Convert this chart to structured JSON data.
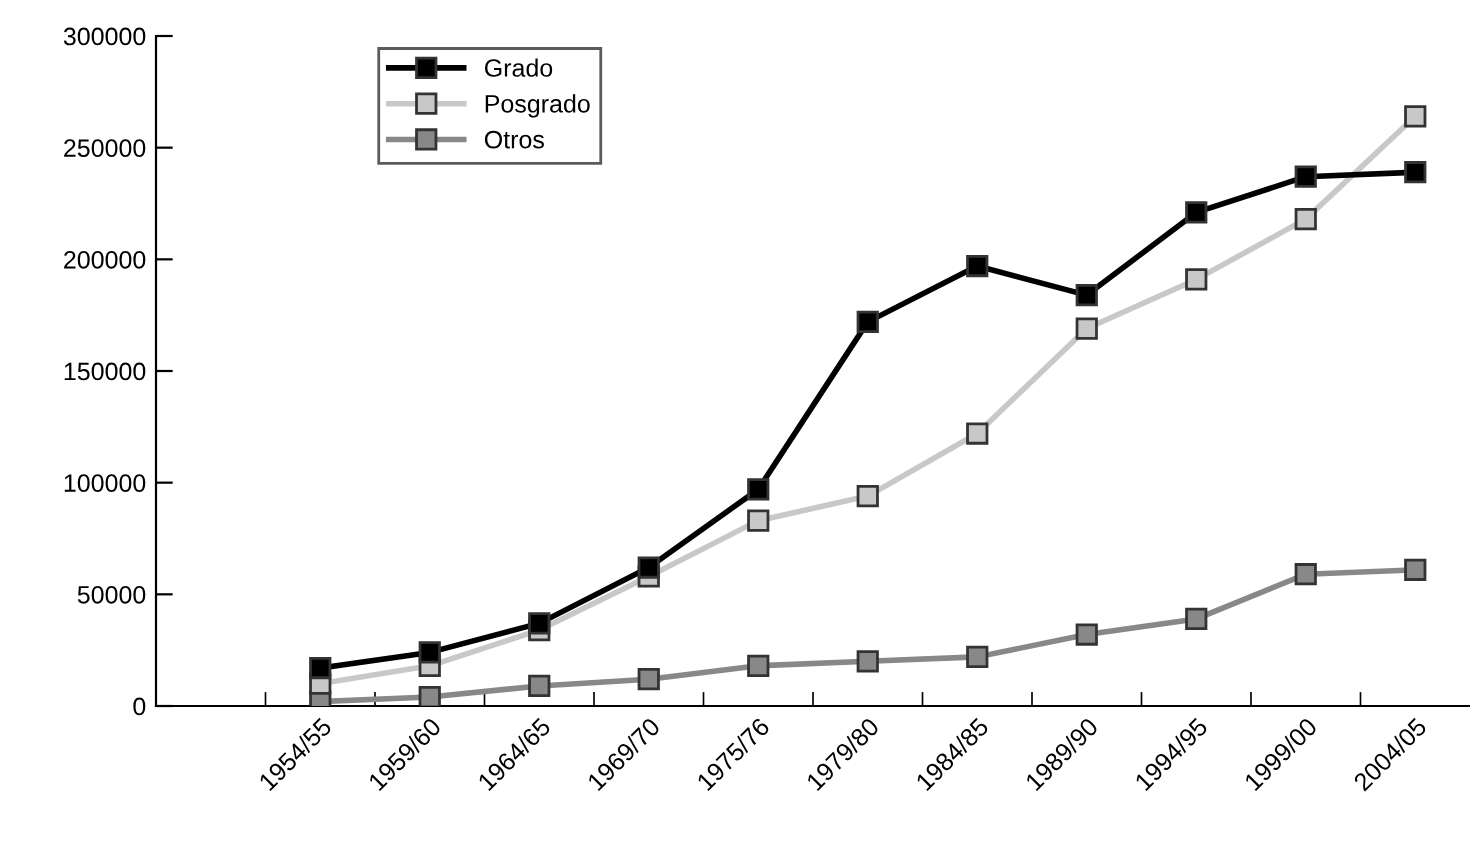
{
  "chart_data": {
    "type": "line",
    "categories": [
      "1954/55",
      "1959/60",
      "1964/65",
      "1969/70",
      "1975/76",
      "1979/80",
      "1984/85",
      "1989/90",
      "1994/95",
      "1999/00",
      "2004/05"
    ],
    "series": [
      {
        "name": "Grado",
        "color": "#000000",
        "values": [
          17000,
          24000,
          37000,
          62000,
          97000,
          172000,
          197000,
          184000,
          221000,
          237000,
          239000
        ]
      },
      {
        "name": "Posgrado",
        "color": "#c8c8c8",
        "values": [
          10000,
          18000,
          34000,
          58000,
          83000,
          94000,
          122000,
          169000,
          191000,
          218000,
          264000
        ]
      },
      {
        "name": "Otros",
        "color": "#888888",
        "values": [
          2000,
          4000,
          9000,
          12000,
          18000,
          20000,
          22000,
          32000,
          39000,
          59000,
          61000
        ]
      }
    ],
    "ylim": [
      0,
      300000
    ],
    "yticks": [
      0,
      50000,
      100000,
      150000,
      200000,
      250000,
      300000
    ],
    "grid": false,
    "legend": "top left",
    "marker": "square",
    "line_style": "solid"
  }
}
